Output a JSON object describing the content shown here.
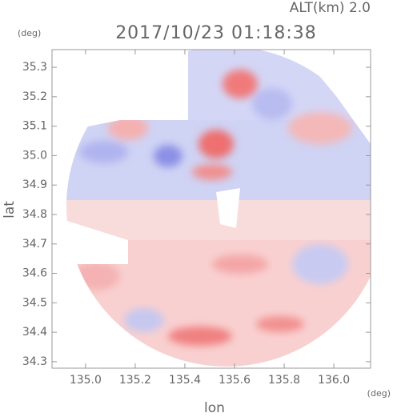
{
  "chart_data": {
    "type": "field",
    "title": "2017/10/23 01:18:38",
    "annotation": "ALT(km) 2.0",
    "xlabel": "lon",
    "ylabel": "lat",
    "xunit": "(deg)",
    "yunit": "(deg)",
    "xlim": [
      134.865,
      136.148
    ],
    "ylim": [
      34.278,
      35.36
    ],
    "xticks": [
      {
        "value": 135.0,
        "label": "135.0"
      },
      135.2,
      135.4,
      135.6,
      135.8,
      {
        "value": 136.0,
        "label": "136.0"
      }
    ],
    "yticks": [
      34.3,
      34.4,
      34.5,
      34.6,
      34.7,
      34.8,
      34.9,
      {
        "value": 35.0,
        "label": "35.0"
      },
      35.1,
      35.2,
      35.3
    ]
  }
}
